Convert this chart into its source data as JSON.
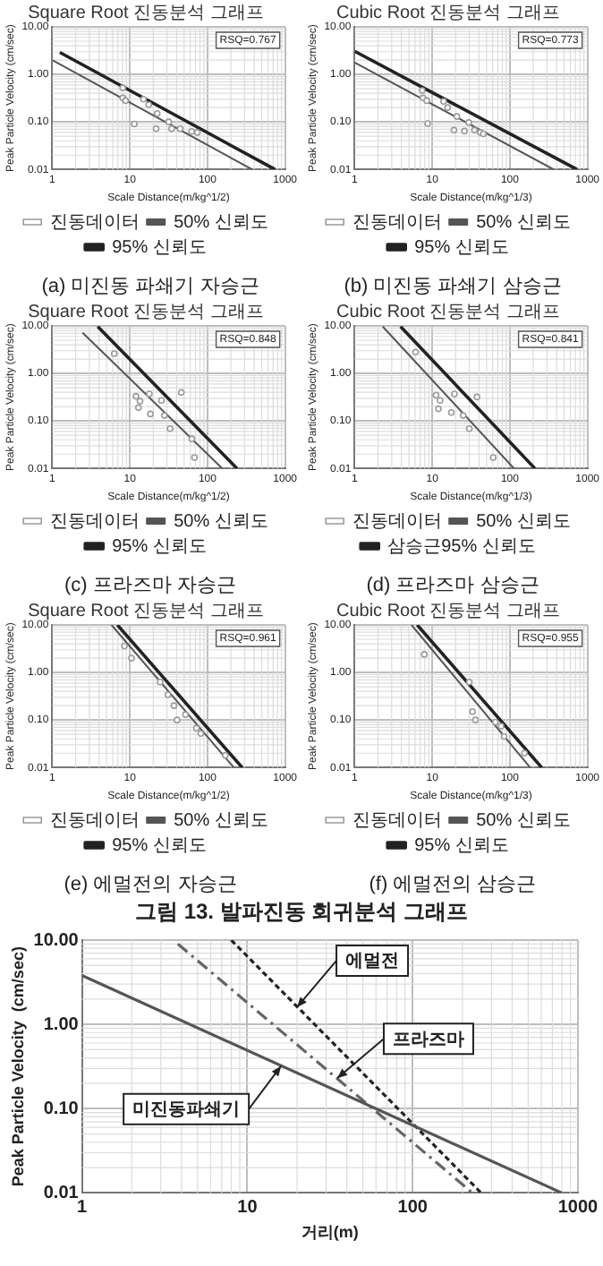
{
  "chart_data": [
    {
      "type": "line",
      "title": "Square Root 진동분석 그래프",
      "xlabel": "Scale Distance(m/kg^1/2)",
      "ylabel": "Peak Particle Velocity (cm/sec)",
      "annotations": [
        "RSQ=0.767",
        "(a) 미진동 파쇄기 자승근"
      ],
      "log": "xy",
      "grid": true,
      "legend": "bottom",
      "xlim": [
        1,
        1000
      ],
      "ylim": [
        0.01,
        10
      ],
      "xticks": [
        1,
        10,
        100,
        1000
      ],
      "yticks": [
        {
          "value": 0.01,
          "label": "0.01"
        },
        {
          "value": 0.1,
          "label": "0.10"
        },
        {
          "value": 1,
          "label": "1.00"
        },
        {
          "value": 10,
          "label": "10.00"
        }
      ],
      "series": [
        {
          "name": "50% 신뢰도",
          "color": "#555555",
          "x": [
            1,
            375
          ],
          "values": [
            2.0,
            0.01
          ]
        },
        {
          "name": "95% 신뢰도",
          "color": "#222222",
          "x": [
            1.25,
            740
          ],
          "values": [
            2.9,
            0.01
          ]
        },
        {
          "type": "scatter",
          "marker": "circle",
          "name": "진동데이터",
          "color": "#9a9a9a",
          "x": [
            8.1,
            8.1,
            8.8,
            15,
            17.5,
            22.5,
            11.4,
            21.8,
            31.7,
            34.5,
            44.5,
            62.5,
            74
          ],
          "values": [
            0.52,
            0.32,
            0.28,
            0.3,
            0.23,
            0.15,
            0.09,
            0.072,
            0.1,
            0.072,
            0.072,
            0.063,
            0.06
          ]
        }
      ]
    },
    {
      "type": "line",
      "title": "Cubic Root 진동분석 그래프",
      "xlabel": "Scale Distance(m/kg^1/3)",
      "ylabel": "Peak Particle Velocity (cm/sec)",
      "annotations": [
        "RSQ=0.773",
        "(b) 미진동 파쇄기 삼승근"
      ],
      "log": "xy",
      "grid": true,
      "legend": "bottom",
      "xlim": [
        1,
        1000
      ],
      "ylim": [
        0.01,
        10
      ],
      "xticks": [
        1,
        10,
        100,
        1000
      ],
      "yticks": [
        {
          "value": 0.01,
          "label": "0.01"
        },
        {
          "value": 0.1,
          "label": "0.10"
        },
        {
          "value": 1,
          "label": "1.00"
        },
        {
          "value": 10,
          "label": "10.00"
        }
      ],
      "series": [
        {
          "name": "50% 신뢰도",
          "color": "#555555",
          "x": [
            1,
            365
          ],
          "values": [
            1.78,
            0.01
          ]
        },
        {
          "name": "95% 신뢰도",
          "color": "#222222",
          "x": [
            1,
            730
          ],
          "values": [
            3.06,
            0.01
          ]
        },
        {
          "type": "scatter",
          "marker": "circle",
          "name": "진동데이터",
          "color": "#9a9a9a",
          "x": [
            7.4,
            7.6,
            8.5,
            14,
            15.8,
            20.8,
            8.7,
            19,
            29.5,
            26,
            35,
            41.7,
            45.5
          ],
          "values": [
            0.46,
            0.32,
            0.28,
            0.27,
            0.2,
            0.13,
            0.092,
            0.067,
            0.097,
            0.064,
            0.067,
            0.06,
            0.056
          ]
        }
      ]
    },
    {
      "type": "line",
      "title": "Square Root 진동분석 그래프",
      "xlabel": "Scale Distance(m/kg^1/2)",
      "ylabel": "Peak Particle Velocity (cm/sec)",
      "annotations": [
        "RSQ=0.848",
        "(c) 프라즈마 자승근"
      ],
      "log": "xy",
      "grid": true,
      "legend": "bottom",
      "xlim": [
        1,
        1000
      ],
      "ylim": [
        0.01,
        10
      ],
      "xticks": [
        1,
        10,
        100,
        1000
      ],
      "yticks": [
        {
          "value": 0.01,
          "label": "0.01"
        },
        {
          "value": 0.1,
          "label": "0.10"
        },
        {
          "value": 1,
          "label": "1.00"
        },
        {
          "value": 10,
          "label": "10.00"
        }
      ],
      "series": [
        {
          "name": "50% 신뢰도",
          "color": "#555555",
          "x": [
            2.45,
            155
          ],
          "values": [
            7.2,
            0.01
          ]
        },
        {
          "name": "95% 신뢰도",
          "color": "#222222",
          "x": [
            3.85,
            240
          ],
          "values": [
            9.7,
            0.01
          ]
        },
        {
          "type": "scatter",
          "marker": "circle",
          "name": "진동데이터",
          "color": "#9a9a9a",
          "x": [
            6.3,
            12,
            13.5,
            12.9,
            17.8,
            18.4,
            25.5,
            27.8,
            33,
            46,
            63,
            68
          ],
          "values": [
            2.6,
            0.33,
            0.26,
            0.19,
            0.37,
            0.14,
            0.27,
            0.13,
            0.069,
            0.4,
            0.042,
            0.017
          ]
        }
      ]
    },
    {
      "type": "line",
      "title": "Cubic Root 진동분석 그래프",
      "xlabel": "Scale Distance(m/kg^1/3)",
      "ylabel": "Peak Particle Velocity (cm/sec)",
      "annotations": [
        "RSQ=0.841",
        "(d) 프라즈마 삼승근"
      ],
      "log": "xy",
      "grid": true,
      "legend": "bottom",
      "xlim": [
        1,
        1000
      ],
      "ylim": [
        0.01,
        10
      ],
      "xticks": [
        1,
        10,
        100,
        1000
      ],
      "yticks": [
        {
          "value": 0.01,
          "label": "0.01"
        },
        {
          "value": 0.1,
          "label": "0.10"
        },
        {
          "value": 1,
          "label": "1.00"
        },
        {
          "value": 10,
          "label": "10.00"
        }
      ],
      "series": [
        {
          "name": "50% 신뢰도",
          "color": "#555555",
          "x": [
            2.3,
            113
          ],
          "values": [
            9.7,
            0.01
          ]
        },
        {
          "name": "삼승근95% 신뢰도",
          "color": "#222222",
          "x": [
            3.9,
            210
          ],
          "values": [
            9.7,
            0.01
          ]
        },
        {
          "type": "scatter",
          "marker": "circle",
          "name": "진동데이터",
          "color": "#9a9a9a",
          "x": [
            6.1,
            11.2,
            12.6,
            12,
            19.3,
            17.6,
            25,
            30,
            37.7,
            61
          ],
          "values": [
            2.8,
            0.35,
            0.27,
            0.18,
            0.37,
            0.15,
            0.13,
            0.069,
            0.32,
            0.017
          ]
        }
      ]
    },
    {
      "type": "line",
      "title": "Square Root 진동분석 그래프",
      "xlabel": "Scale Distance(m/kg^1/2)",
      "ylabel": "Peak Particle Velocity (cm/sec)",
      "annotations": [
        "RSQ=0.961",
        "(e) 에멀전의 자승근"
      ],
      "log": "xy",
      "grid": true,
      "legend": "bottom",
      "xlim": [
        1,
        1000
      ],
      "ylim": [
        0.01,
        10
      ],
      "xticks": [
        1,
        10,
        100,
        1000
      ],
      "yticks": [
        {
          "value": 0.01,
          "label": "0.01"
        },
        {
          "value": 0.1,
          "label": "0.10"
        },
        {
          "value": 1,
          "label": "1.00"
        },
        {
          "value": 10,
          "label": "10.00"
        }
      ],
      "series": [
        {
          "name": "50% 신뢰도",
          "color": "#555555",
          "x": [
            5.8,
            218
          ],
          "values": [
            10,
            0.01
          ]
        },
        {
          "name": "95% 신뢰도",
          "color": "#222222",
          "x": [
            6.9,
            280
          ],
          "values": [
            10,
            0.01
          ]
        },
        {
          "type": "scatter",
          "marker": "circle",
          "name": "진동데이터",
          "color": "#9a9a9a",
          "x": [
            8.5,
            10.5,
            24.5,
            31,
            37,
            40.5,
            52,
            72,
            82,
            170
          ],
          "values": [
            3.6,
            2.0,
            0.63,
            0.34,
            0.2,
            0.1,
            0.13,
            0.067,
            0.052,
            0.018
          ]
        }
      ]
    },
    {
      "type": "line",
      "title": "Cubic Root 진동분석 그래프",
      "xlabel": "Scale Distance(m/kg^1/3)",
      "ylabel": "Peak Particle Velocity (cm/sec)",
      "annotations": [
        "RSQ=0.955",
        "(f) 에멀전의 삼승근",
        "그림 13. 발파진동 회귀분석 그래프"
      ],
      "log": "xy",
      "grid": true,
      "legend": "bottom",
      "xlim": [
        1,
        1000
      ],
      "ylim": [
        0.01,
        10
      ],
      "xticks": [
        1,
        10,
        100,
        1000
      ],
      "yticks": [
        {
          "value": 0.01,
          "label": "0.01"
        },
        {
          "value": 0.1,
          "label": "0.10"
        },
        {
          "value": 1,
          "label": "1.00"
        },
        {
          "value": 10,
          "label": "10.00"
        }
      ],
      "series": [
        {
          "name": "50% 신뢰도",
          "color": "#555555",
          "x": [
            5.4,
            182
          ],
          "values": [
            10,
            0.01
          ]
        },
        {
          "name": "95% 신뢰도",
          "color": "#222222",
          "x": [
            6.4,
            257
          ],
          "values": [
            10,
            0.01
          ]
        },
        {
          "type": "scatter",
          "marker": "circle",
          "name": "진동데이터",
          "color": "#9a9a9a",
          "x": [
            7.9,
            30,
            33,
            36,
            65,
            77,
            84,
            154
          ],
          "values": [
            2.4,
            0.63,
            0.15,
            0.1,
            0.09,
            0.074,
            0.045,
            0.02
          ]
        }
      ]
    },
    {
      "type": "line",
      "xlabel": "거리(m)",
      "ylabel": "Peak Particle Velocity  (cm/sec)",
      "annotations": [
        {
          "text": "에멀전",
          "x": 20,
          "y": 1.6
        },
        {
          "text": "프라즈마",
          "x": 35,
          "y": 0.23
        },
        {
          "text": "미진동파쇄기",
          "x": 16,
          "y": 0.32
        }
      ],
      "log": "xy",
      "grid": true,
      "xlim": [
        1,
        1000
      ],
      "ylim": [
        0.01,
        10
      ],
      "xticks": [
        1,
        10,
        100,
        1000
      ],
      "yticks": [
        {
          "value": 0.01,
          "label": "0.01"
        },
        {
          "value": 0.1,
          "label": "0.10"
        },
        {
          "value": 1,
          "label": "1.00"
        },
        {
          "value": 10,
          "label": "10.00"
        }
      ],
      "series": [
        {
          "color": "#555555",
          "line_style": "solid",
          "x": [
            1,
            800
          ],
          "values": [
            3.8,
            0.01
          ]
        },
        {
          "color": "#666666",
          "line_style": "dashed",
          "x": [
            3.8,
            230
          ],
          "values": [
            9,
            0.01
          ]
        },
        {
          "color": "#222222",
          "line_style": "dotted",
          "x": [
            8,
            260
          ],
          "values": [
            10,
            0.01
          ]
        }
      ]
    }
  ]
}
